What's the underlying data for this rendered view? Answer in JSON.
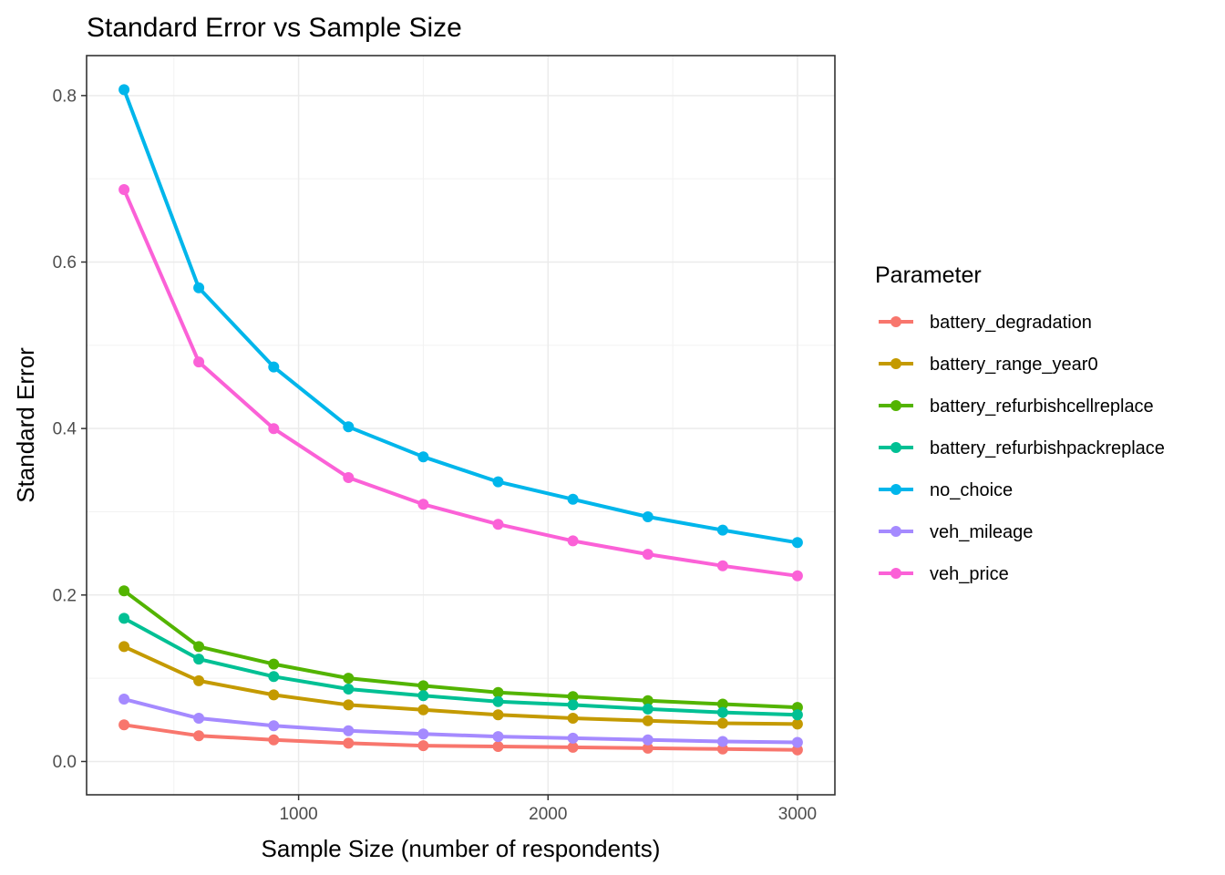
{
  "chart_data": {
    "type": "line",
    "title": "Standard Error vs Sample Size",
    "xlabel": "Sample Size (number of respondents)",
    "ylabel": "Standard Error",
    "xlim": [
      150,
      3150
    ],
    "ylim": [
      -0.04,
      0.848
    ],
    "x_ticks": [
      1000,
      2000,
      3000
    ],
    "x_tick_labels": [
      "1000",
      "2000",
      "3000"
    ],
    "y_ticks": [
      0.0,
      0.2,
      0.4,
      0.6,
      0.8
    ],
    "y_tick_labels": [
      "0.0",
      "0.2",
      "0.4",
      "0.6",
      "0.8"
    ],
    "grid": true,
    "legend_title": "Parameter",
    "legend_position": "right",
    "x": [
      300,
      600,
      900,
      1200,
      1500,
      1800,
      2100,
      2400,
      2700,
      3000
    ],
    "series": [
      {
        "name": "battery_degradation",
        "color": "#F8766D",
        "values": [
          0.044,
          0.031,
          0.026,
          0.022,
          0.019,
          0.018,
          0.017,
          0.016,
          0.015,
          0.014
        ]
      },
      {
        "name": "battery_range_year0",
        "color": "#C49A00",
        "values": [
          0.138,
          0.097,
          0.08,
          0.068,
          0.062,
          0.056,
          0.052,
          0.049,
          0.046,
          0.045
        ]
      },
      {
        "name": "battery_refurbishcellreplace",
        "color": "#53B400",
        "values": [
          0.205,
          0.138,
          0.117,
          0.1,
          0.091,
          0.083,
          0.078,
          0.073,
          0.069,
          0.065
        ]
      },
      {
        "name": "battery_refurbishpackreplace",
        "color": "#00C094",
        "values": [
          0.172,
          0.123,
          0.102,
          0.087,
          0.079,
          0.072,
          0.068,
          0.063,
          0.059,
          0.056
        ]
      },
      {
        "name": "no_choice",
        "color": "#00B6EB",
        "values": [
          0.807,
          0.569,
          0.474,
          0.402,
          0.366,
          0.336,
          0.315,
          0.294,
          0.278,
          0.263
        ]
      },
      {
        "name": "veh_mileage",
        "color": "#A58AFF",
        "values": [
          0.075,
          0.052,
          0.043,
          0.037,
          0.033,
          0.03,
          0.028,
          0.026,
          0.024,
          0.023
        ]
      },
      {
        "name": "veh_price",
        "color": "#FB61D7",
        "values": [
          0.687,
          0.48,
          0.4,
          0.341,
          0.309,
          0.285,
          0.265,
          0.249,
          0.235,
          0.223
        ]
      }
    ]
  }
}
